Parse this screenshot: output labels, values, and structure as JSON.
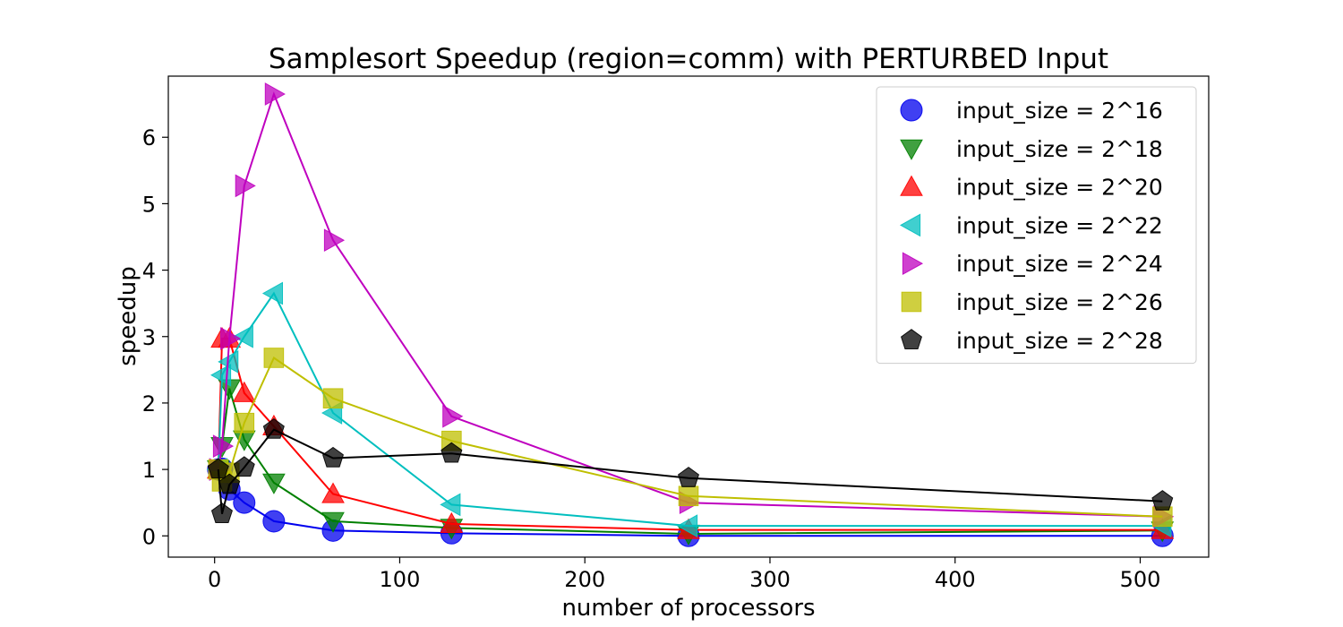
{
  "chart_data": {
    "type": "line",
    "title": "Samplesort Speedup (region=comm) with PERTURBED Input",
    "xlabel": "number of processors",
    "ylabel": "speedup",
    "xlim": [
      -25,
      537
    ],
    "ylim": [
      -0.32,
      6.92
    ],
    "xticks": [
      0,
      100,
      200,
      300,
      400,
      500
    ],
    "yticks": [
      0,
      1,
      2,
      3,
      4,
      5,
      6
    ],
    "grid": false,
    "legend_position": "upper-right",
    "x": [
      2,
      4,
      8,
      16,
      32,
      64,
      128,
      256,
      512
    ],
    "series": [
      {
        "name": "input_size = 2^16",
        "marker": "circle",
        "color": "#0000ee",
        "values": [
          1.0,
          1.01,
          0.7,
          0.5,
          0.22,
          0.08,
          0.04,
          0.0,
          0.0
        ]
      },
      {
        "name": "input_size = 2^18",
        "marker": "triangle-down",
        "color": "#008000",
        "values": [
          1.0,
          1.35,
          2.22,
          1.45,
          0.8,
          0.22,
          0.12,
          0.03,
          0.08
        ]
      },
      {
        "name": "input_size = 2^20",
        "marker": "triangle-up",
        "color": "#ff0000",
        "values": [
          1.0,
          2.97,
          2.97,
          2.15,
          1.65,
          0.63,
          0.18,
          0.09,
          0.09
        ]
      },
      {
        "name": "input_size = 2^22",
        "marker": "triangle-left",
        "color": "#00bfbf",
        "values": [
          1.0,
          2.42,
          2.62,
          3.0,
          3.65,
          1.85,
          0.47,
          0.15,
          0.15
        ]
      },
      {
        "name": "input_size = 2^24",
        "marker": "triangle-right",
        "color": "#bf00bf",
        "values": [
          1.0,
          1.35,
          2.97,
          5.27,
          6.65,
          4.45,
          1.8,
          0.5,
          0.29
        ]
      },
      {
        "name": "input_size = 2^26",
        "marker": "square",
        "color": "#bfbf00",
        "values": [
          1.0,
          0.82,
          0.95,
          1.7,
          2.68,
          2.07,
          1.43,
          0.6,
          0.29
        ]
      },
      {
        "name": "input_size = 2^28",
        "marker": "pentagon",
        "color": "#000000",
        "values": [
          1.0,
          0.33,
          0.77,
          1.03,
          1.6,
          1.17,
          1.24,
          0.87,
          0.52
        ]
      }
    ]
  }
}
